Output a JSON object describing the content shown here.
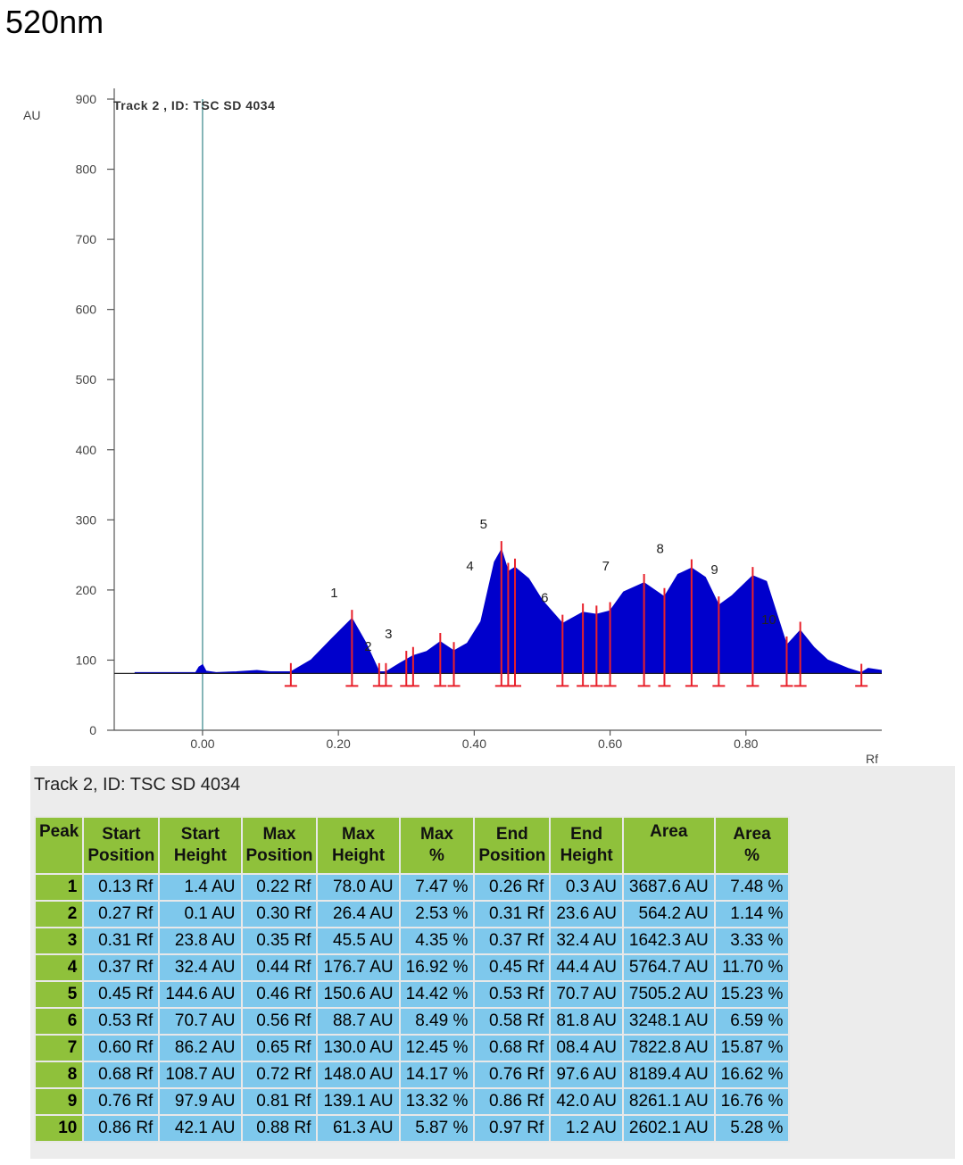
{
  "wavelength_label": "520nm",
  "chart_data": {
    "type": "line",
    "title": "Track 2 , ID: TSC SD 4034",
    "xlabel": "Rf",
    "ylabel": "AU",
    "xlim": [
      -0.13,
      1.0
    ],
    "ylim": [
      0,
      900
    ],
    "xticks": [
      "0.00",
      "0.20",
      "0.40",
      "0.60",
      "0.80"
    ],
    "xtick_values": [
      0.0,
      0.2,
      0.4,
      0.6,
      0.8
    ],
    "yticks": [
      "0",
      "100",
      "200",
      "300",
      "400",
      "500",
      "600",
      "700",
      "800",
      "900"
    ],
    "ytick_values": [
      0,
      100,
      200,
      300,
      400,
      500,
      600,
      700,
      800,
      900
    ],
    "baseline": 81,
    "origin_line_x": 0.0,
    "series": [
      {
        "color": "#0000cc",
        "x": [
          -0.1,
          -0.05,
          -0.01,
          -0.005,
          0.0,
          0.005,
          0.02,
          0.05,
          0.08,
          0.1,
          0.13,
          0.16,
          0.19,
          0.22,
          0.24,
          0.26,
          0.27,
          0.29,
          0.31,
          0.33,
          0.35,
          0.37,
          0.39,
          0.41,
          0.43,
          0.44,
          0.45,
          0.46,
          0.48,
          0.5,
          0.53,
          0.56,
          0.58,
          0.6,
          0.62,
          0.65,
          0.68,
          0.7,
          0.72,
          0.74,
          0.76,
          0.78,
          0.81,
          0.83,
          0.86,
          0.88,
          0.9,
          0.92,
          0.95,
          0.97,
          0.98,
          1.0
        ],
        "y": [
          82,
          82,
          82,
          90,
          93,
          84,
          82,
          83,
          85,
          83,
          83,
          100,
          130,
          159,
          125,
          83,
          83,
          95,
          106,
          112,
          126,
          113,
          124,
          155,
          240,
          257,
          226,
          232,
          216,
          185,
          152,
          168,
          165,
          170,
          197,
          210,
          190,
          222,
          231,
          218,
          178,
          192,
          220,
          212,
          121,
          142,
          118,
          100,
          88,
          82,
          88,
          85
        ]
      }
    ],
    "peak_labels": [
      {
        "label": "1",
        "x": 0.22,
        "y": 78.0
      },
      {
        "label": "2",
        "x": 0.27,
        "y": 26.4
      },
      {
        "label": "3",
        "x": 0.3,
        "y": 45.5
      },
      {
        "label": "4",
        "x": 0.42,
        "y": 176.7
      },
      {
        "label": "5",
        "x": 0.44,
        "y": 150.6
      },
      {
        "label": "6",
        "x": 0.53,
        "y": 88.7
      },
      {
        "label": "7",
        "x": 0.62,
        "y": 130.0
      },
      {
        "label": "8",
        "x": 0.7,
        "y": 148.0
      },
      {
        "label": "9",
        "x": 0.78,
        "y": 139.1
      },
      {
        "label": "10",
        "x": 0.86,
        "y": 61.3
      }
    ],
    "integration_markers": [
      0.13,
      0.22,
      0.26,
      0.27,
      0.3,
      0.31,
      0.35,
      0.37,
      0.44,
      0.45,
      0.46,
      0.53,
      0.56,
      0.58,
      0.6,
      0.65,
      0.68,
      0.72,
      0.76,
      0.81,
      0.86,
      0.88,
      0.97
    ]
  },
  "table": {
    "caption": "Track 2, ID: TSC SD 4034",
    "headers": [
      [
        "Peak",
        ""
      ],
      [
        "Start",
        "Position"
      ],
      [
        "Start",
        "Height"
      ],
      [
        "Max",
        "Position"
      ],
      [
        "Max",
        "Height"
      ],
      [
        "Max",
        "%"
      ],
      [
        "End",
        "Position"
      ],
      [
        "End",
        "Height"
      ],
      [
        "Area",
        ""
      ],
      [
        "Area",
        "%"
      ]
    ],
    "rows": [
      [
        "1",
        "0.13 Rf",
        "1.4 AU",
        "0.22 Rf",
        "78.0 AU",
        "7.47 %",
        "0.26 Rf",
        "0.3 AU",
        "3687.6 AU",
        "7.48 %"
      ],
      [
        "2",
        "0.27 Rf",
        "0.1 AU",
        "0.30 Rf",
        "26.4 AU",
        "2.53 %",
        "0.31 Rf",
        "23.6 AU",
        "564.2 AU",
        "1.14 %"
      ],
      [
        "3",
        "0.31 Rf",
        "23.8 AU",
        "0.35 Rf",
        "45.5 AU",
        "4.35 %",
        "0.37 Rf",
        "32.4 AU",
        "1642.3 AU",
        "3.33 %"
      ],
      [
        "4",
        "0.37 Rf",
        "32.4 AU",
        "0.44 Rf",
        "176.7 AU",
        "16.92 %",
        "0.45 Rf",
        "44.4 AU",
        "5764.7 AU",
        "11.70 %"
      ],
      [
        "5",
        "0.45 Rf",
        "144.6 AU",
        "0.46 Rf",
        "150.6 AU",
        "14.42 %",
        "0.53 Rf",
        "70.7 AU",
        "7505.2 AU",
        "15.23 %"
      ],
      [
        "6",
        "0.53 Rf",
        "70.7 AU",
        "0.56 Rf",
        "88.7 AU",
        "8.49 %",
        "0.58 Rf",
        "81.8 AU",
        "3248.1 AU",
        "6.59 %"
      ],
      [
        "7",
        "0.60 Rf",
        "86.2 AU",
        "0.65 Rf",
        "130.0 AU",
        "12.45 %",
        "0.68 Rf",
        "08.4 AU",
        "7822.8 AU",
        "15.87 %"
      ],
      [
        "8",
        "0.68 Rf",
        "108.7 AU",
        "0.72 Rf",
        "148.0 AU",
        "14.17 %",
        "0.76 Rf",
        "97.6 AU",
        "8189.4 AU",
        "16.62 %"
      ],
      [
        "9",
        "0.76 Rf",
        "97.9 AU",
        "0.81 Rf",
        "139.1 AU",
        "13.32 %",
        "0.86 Rf",
        "42.0 AU",
        "8261.1 AU",
        "16.76 %"
      ],
      [
        "10",
        "0.86 Rf",
        "42.1 AU",
        "0.88 Rf",
        "61.3 AU",
        "5.87 %",
        "0.97 Rf",
        "1.2 AU",
        "2602.1 AU",
        "5.28 %"
      ]
    ]
  }
}
